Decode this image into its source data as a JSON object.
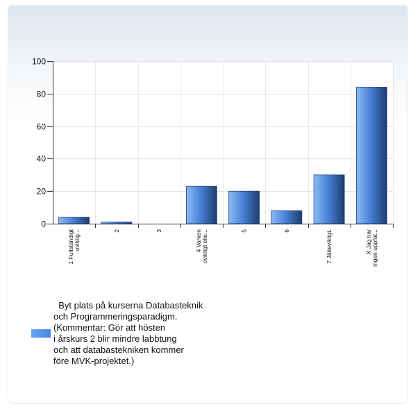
{
  "chart_data": {
    "type": "bar",
    "categories": [
      "1 Fullständigt oviktig...",
      "2",
      "3",
      "4 Varken oviktigt elle...",
      "5",
      "6",
      "7 Jätteviktigt.",
      "X Jag har ingen uppfat..."
    ],
    "category_lines": [
      [
        "1 Fullständigt",
        "oviktig..."
      ],
      [
        "2"
      ],
      [
        "3"
      ],
      [
        "4 Varken",
        "oviktigt elle..."
      ],
      [
        "5"
      ],
      [
        "6"
      ],
      [
        "7 Jätteviktigt."
      ],
      [
        "X Jag har",
        "ingen uppfat..."
      ]
    ],
    "values": [
      4,
      1,
      0,
      23,
      20,
      8,
      30,
      84
    ],
    "ylim": [
      0,
      100
    ],
    "yticks": [
      0,
      20,
      40,
      60,
      80,
      100
    ],
    "grid": true,
    "series_color": "#4a8ae6",
    "legend": {
      "placement": "bottom-left",
      "label": "  Byt plats på kurserna Databasteknik\noch Programmeringsparadigm.\n(Kommentar: Gör att hösten\ni årskurs 2 blir mindre labbtung\noch att databastekniken kommer\nföre MVK-projektet.)"
    }
  }
}
